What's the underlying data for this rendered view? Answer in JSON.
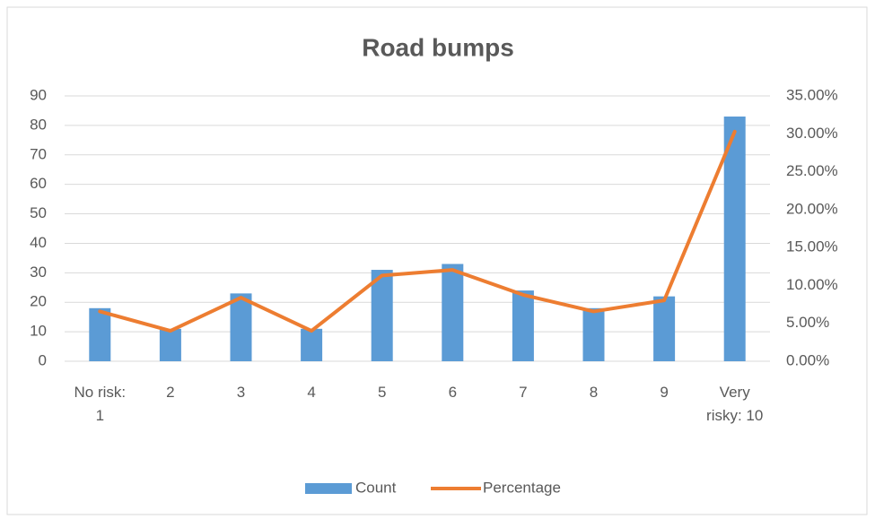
{
  "chart_data": {
    "type": "bar-line",
    "title": "Road bumps",
    "categories": [
      "No risk: 1",
      "2",
      "3",
      "4",
      "5",
      "6",
      "7",
      "8",
      "9",
      "Very risky: 10"
    ],
    "series": [
      {
        "name": "Count",
        "type": "bar",
        "color": "#5b9bd5",
        "values": [
          18,
          11,
          23,
          11,
          31,
          33,
          24,
          18,
          22,
          83
        ]
      },
      {
        "name": "Percentage",
        "type": "line",
        "axis": "y2",
        "color": "#ed7d31",
        "values": [
          6.57,
          4.01,
          8.39,
          4.01,
          11.31,
          12.04,
          8.76,
          6.57,
          8.03,
          30.29
        ]
      }
    ],
    "ylim": [
      0,
      90
    ],
    "yticks": [
      0,
      10,
      20,
      30,
      40,
      50,
      60,
      70,
      80,
      90
    ],
    "y2lim": [
      0,
      35
    ],
    "y2ticks": [
      {
        "value": 0,
        "label": "0.00%"
      },
      {
        "value": 5,
        "label": "5.00%"
      },
      {
        "value": 10,
        "label": "10.00%"
      },
      {
        "value": 15,
        "label": "15.00%"
      },
      {
        "value": 20,
        "label": "20.00%"
      },
      {
        "value": 25,
        "label": "25.00%"
      },
      {
        "value": 30,
        "label": "30.00%"
      },
      {
        "value": 35,
        "label": "35.00%"
      }
    ],
    "grid": true,
    "legend": "bottom"
  }
}
